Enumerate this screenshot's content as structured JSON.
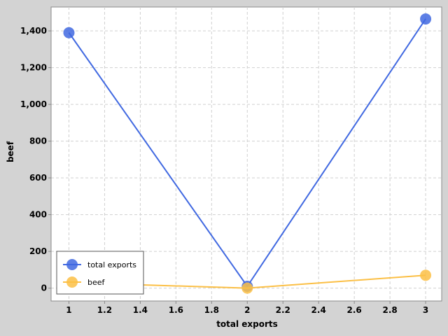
{
  "chart_data": {
    "type": "line",
    "xlabel": "total exports",
    "ylabel": "beef",
    "xlim": [
      0.9,
      3.09
    ],
    "ylim": [
      -70,
      1530
    ],
    "x_ticks": [
      "1",
      "1.2",
      "1.4",
      "1.6",
      "1.8",
      "2",
      "2.2",
      "2.4",
      "2.6",
      "2.8",
      "3"
    ],
    "x_tick_values": [
      1,
      1.2,
      1.4,
      1.6,
      1.8,
      2,
      2.2,
      2.4,
      2.6,
      2.8,
      3
    ],
    "y_ticks": [
      "0",
      "200",
      "400",
      "600",
      "800",
      "1,000",
      "1,200",
      "1,400"
    ],
    "y_tick_values": [
      0,
      200,
      400,
      600,
      800,
      1000,
      1200,
      1400
    ],
    "grid": true,
    "legend_position": "bottom-left",
    "series": [
      {
        "name": "total exports",
        "color": "#4169e1",
        "x": [
          1,
          2,
          3
        ],
        "y": [
          1390,
          10,
          1465
        ]
      },
      {
        "name": "beef",
        "color": "#fbbf45",
        "x": [
          1,
          2,
          3
        ],
        "y": [
          30,
          0,
          70
        ]
      }
    ]
  }
}
